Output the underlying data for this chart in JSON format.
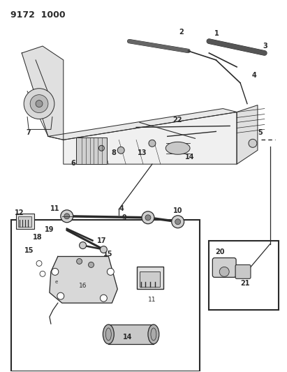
{
  "title": "9172  1000",
  "bg_color": "#ffffff",
  "lc": "#2a2a2a",
  "fig_width": 4.11,
  "fig_height": 5.33,
  "dpi": 100,
  "lfs": 7.0
}
